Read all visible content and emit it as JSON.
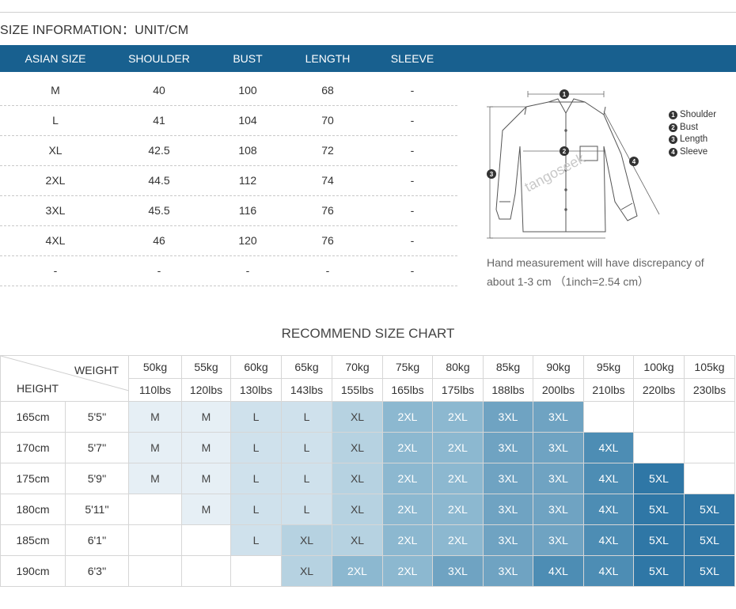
{
  "size_info": {
    "title": "SIZE INFORMATION：UNIT/CM",
    "headers": [
      "ASIAN SIZE",
      "SHOULDER",
      "BUST",
      "LENGTH",
      "SLEEVE"
    ],
    "rows": [
      [
        "M",
        "40",
        "100",
        "68",
        "-"
      ],
      [
        "L",
        "41",
        "104",
        "70",
        "-"
      ],
      [
        "XL",
        "42.5",
        "108",
        "72",
        "-"
      ],
      [
        "2XL",
        "44.5",
        "112",
        "74",
        "-"
      ],
      [
        "3XL",
        "45.5",
        "116",
        "76",
        "-"
      ],
      [
        "4XL",
        "46",
        "120",
        "76",
        "-"
      ],
      [
        "-",
        "-",
        "-",
        "-",
        "-"
      ]
    ]
  },
  "diagram": {
    "legend": [
      {
        "num": "1",
        "label": "Shoulder"
      },
      {
        "num": "2",
        "label": "Bust"
      },
      {
        "num": "3",
        "label": "Length"
      },
      {
        "num": "4",
        "label": "Sleeve"
      }
    ],
    "watermark": "tangoseek",
    "note": "Hand measurement will have discrepancy of about 1-3 cm （1inch=2.54 cm）"
  },
  "recommend": {
    "title": "RECOMMEND SIZE CHART",
    "weight_label": "WEIGHT",
    "height_label": "HEIGHT",
    "weights_kg": [
      "50kg",
      "55kg",
      "60kg",
      "65kg",
      "70kg",
      "75kg",
      "80kg",
      "85kg",
      "90kg",
      "95kg",
      "100kg",
      "105kg"
    ],
    "weights_lbs": [
      "110lbs",
      "120lbs",
      "130lbs",
      "143lbs",
      "155lbs",
      "165lbs",
      "175lbs",
      "188lbs",
      "200lbs",
      "210lbs",
      "220lbs",
      "230lbs"
    ],
    "rows": [
      {
        "cm": "165cm",
        "ft": "5'5''",
        "sizes": [
          "M",
          "M",
          "L",
          "L",
          "XL",
          "2XL",
          "2XL",
          "3XL",
          "3XL",
          "",
          "",
          ""
        ]
      },
      {
        "cm": "170cm",
        "ft": "5'7''",
        "sizes": [
          "M",
          "M",
          "L",
          "L",
          "XL",
          "2XL",
          "2XL",
          "3XL",
          "3XL",
          "4XL",
          "",
          ""
        ]
      },
      {
        "cm": "175cm",
        "ft": "5'9''",
        "sizes": [
          "M",
          "M",
          "L",
          "L",
          "XL",
          "2XL",
          "2XL",
          "3XL",
          "3XL",
          "4XL",
          "5XL",
          ""
        ]
      },
      {
        "cm": "180cm",
        "ft": "5'11''",
        "sizes": [
          "",
          "M",
          "L",
          "L",
          "XL",
          "2XL",
          "2XL",
          "3XL",
          "3XL",
          "4XL",
          "5XL",
          "5XL"
        ]
      },
      {
        "cm": "185cm",
        "ft": "6'1''",
        "sizes": [
          "",
          "",
          "L",
          "XL",
          "XL",
          "2XL",
          "2XL",
          "3XL",
          "3XL",
          "4XL",
          "5XL",
          "5XL"
        ]
      },
      {
        "cm": "190cm",
        "ft": "6'3''",
        "sizes": [
          "",
          "",
          "",
          "XL",
          "2XL",
          "2XL",
          "3XL",
          "3XL",
          "4XL",
          "4XL",
          "5XL",
          "5XL"
        ]
      }
    ],
    "size_colors": {
      "": "#ffffff",
      "M": "#e6eff5",
      "L": "#cfe1ec",
      "XL": "#b6d2e1",
      "2XL": "#8cb8d0",
      "3XL": "#6fa3c2",
      "4XL": "#4d8db4",
      "5XL": "#2f77a6"
    }
  }
}
